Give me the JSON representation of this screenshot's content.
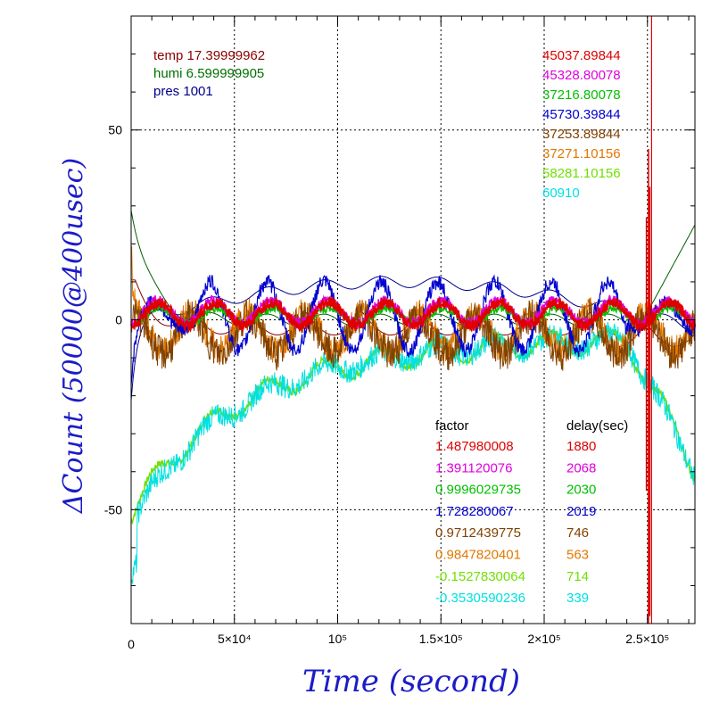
{
  "chart_data": {
    "type": "line",
    "title": "",
    "xlabel": "Time (second)",
    "ylabel": "ΔCount (50000@400usec)",
    "xlim": [
      0,
      273000
    ],
    "ylim": [
      -80,
      80
    ],
    "grid": true,
    "x_ticks": [
      {
        "value": 0,
        "label": "0"
      },
      {
        "value": 50000,
        "label": "5×10⁴"
      },
      {
        "value": 100000,
        "label": "10⁵"
      },
      {
        "value": 150000,
        "label": "1.5×10⁵"
      },
      {
        "value": 200000,
        "label": "2×10⁵"
      },
      {
        "value": 250000,
        "label": "2.5×10⁵"
      }
    ],
    "y_ticks": [
      {
        "value": 50,
        "label": "50"
      },
      {
        "value": 0,
        "label": "0"
      },
      {
        "value": -50,
        "label": "-50"
      }
    ],
    "environment": [
      {
        "label": "temp 17.39999962",
        "color": "#8b0000"
      },
      {
        "label": "humi 6.599999905",
        "color": "#007000"
      },
      {
        "label": "pres 1001",
        "color": "#00008b"
      }
    ],
    "series": [
      {
        "color": "#e00000",
        "value_label": "45037.89844",
        "factor": "1.487980008",
        "delay": "1880"
      },
      {
        "color": "#e000e0",
        "value_label": "45328.80078",
        "factor": "1.391120076",
        "delay": "2068"
      },
      {
        "color": "#00c000",
        "value_label": "37216.80078",
        "factor": "0.9996029735",
        "delay": "2030"
      },
      {
        "color": "#0000d0",
        "value_label": "45730.39844",
        "factor": "1.728280067",
        "delay": "2019"
      },
      {
        "color": "#804000",
        "value_label": "37253.89844",
        "factor": "0.9712439775",
        "delay": "746"
      },
      {
        "color": "#e07800",
        "value_label": "37271.10156",
        "factor": "0.9847820401",
        "delay": "563"
      },
      {
        "color": "#70e000",
        "value_label": "58281.10156",
        "factor": "-0.1527830064",
        "delay": "714"
      },
      {
        "color": "#00e0e0",
        "value_label": "60910",
        "factor": "-0.3530590236",
        "delay": "339"
      }
    ],
    "table_headers": {
      "factor": "factor",
      "delay": "delay(sec)"
    }
  }
}
